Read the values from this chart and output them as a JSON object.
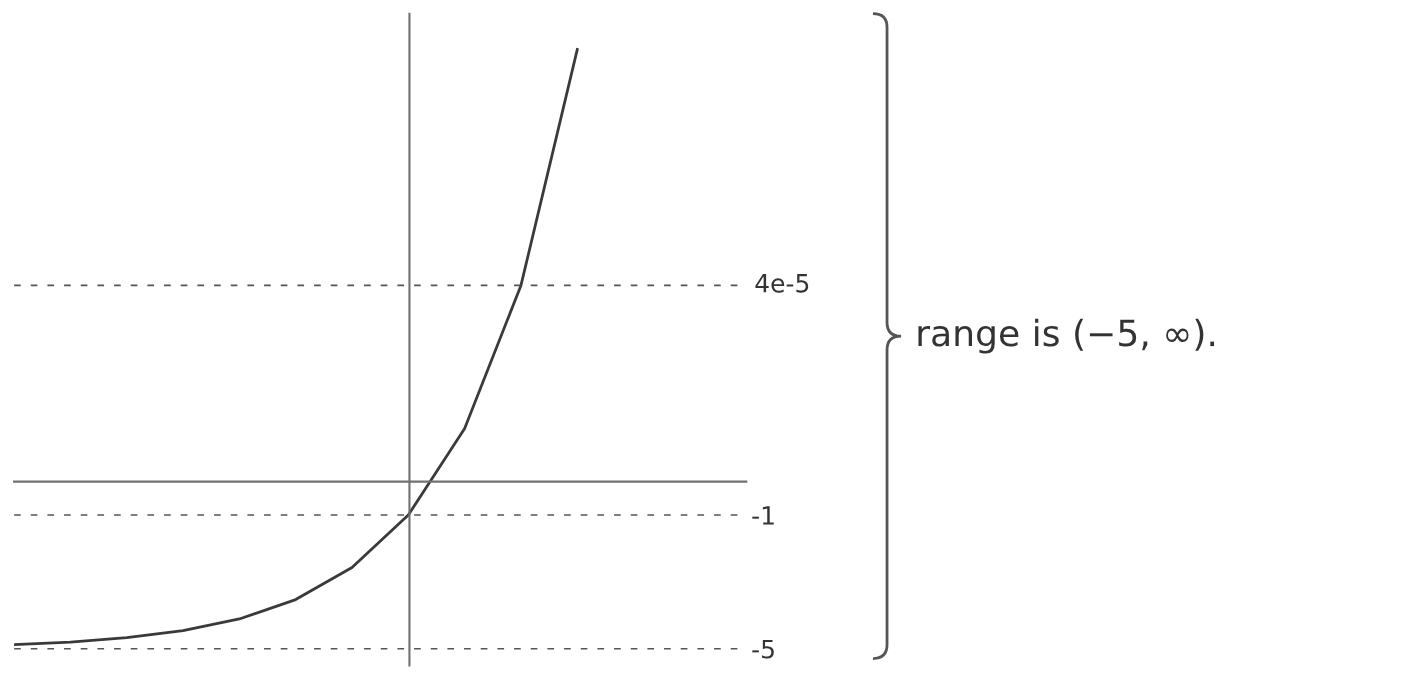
{
  "chart_data": {
    "type": "line",
    "categories": [
      null,
      null,
      null,
      null,
      null,
      null,
      null,
      null,
      null,
      null,
      null
    ],
    "series": [
      {
        "color": "#3a3a3a",
        "values": [
          -4.88,
          -4.8,
          -4.67,
          -4.46,
          -4.11,
          -3.53,
          -2.57,
          -1,
          1.59,
          5.87,
          12.93
        ]
      }
    ],
    "ylim": [
      -5.5,
      14
    ],
    "yticks": [
      {
        "value": -1,
        "label": "-1"
      },
      {
        "value": -5,
        "label": "-5"
      }
    ],
    "tick_labels": "y",
    "ref_lines": [
      {
        "axis": "y",
        "value": 5.87,
        "label": "4e-5",
        "line_style": "dashed",
        "color": "#555555"
      },
      {
        "axis": "y",
        "value": -1,
        "line_style": "dashed",
        "color": "#555555"
      },
      {
        "axis": "y",
        "value": -5,
        "line_style": "dashed",
        "color": "#555555"
      }
    ],
    "annotations": [
      "range is (−5, ∞)."
    ],
    "grid": false,
    "legend": false
  }
}
